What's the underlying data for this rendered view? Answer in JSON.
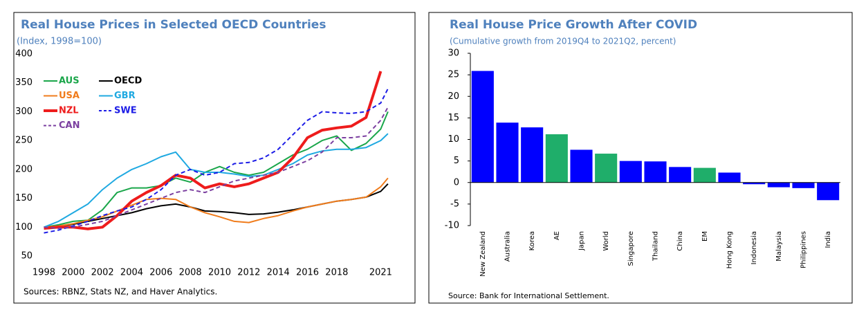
{
  "chart_data": [
    {
      "type": "line",
      "title": "Real House Prices in Selected OECD Countries",
      "subtitle": "(Index, 1998=100)",
      "source": "Sources: RBNZ, Stats NZ, and Haver Analytics.",
      "x": [
        1998,
        1999,
        2000,
        2001,
        2002,
        2003,
        2004,
        2005,
        2006,
        2007,
        2008,
        2009,
        2010,
        2011,
        2012,
        2013,
        2014,
        2015,
        2016,
        2017,
        2018,
        2019,
        2020,
        2021,
        2021.5
      ],
      "xlim": [
        1997.6,
        2022.4
      ],
      "xticks": [
        1998,
        2000,
        2002,
        2004,
        2006,
        2008,
        2010,
        2012,
        2014,
        2016,
        2018,
        2021
      ],
      "ylim": [
        50,
        400
      ],
      "yticks": [
        50,
        100,
        150,
        200,
        250,
        300,
        350,
        400
      ],
      "series": [
        {
          "name": "AUS",
          "color": "#1aa64a",
          "width": 2,
          "dash": false,
          "values": [
            100,
            104,
            110,
            112,
            130,
            160,
            168,
            168,
            172,
            185,
            178,
            195,
            205,
            195,
            190,
            195,
            210,
            225,
            235,
            250,
            258,
            233,
            245,
            270,
            300
          ]
        },
        {
          "name": "OECD",
          "color": "#000000",
          "width": 2,
          "dash": false,
          "values": [
            100,
            102,
            105,
            110,
            115,
            120,
            125,
            132,
            137,
            140,
            135,
            128,
            127,
            125,
            122,
            123,
            126,
            130,
            135,
            140,
            145,
            148,
            152,
            162,
            175
          ]
        },
        {
          "name": "USA",
          "color": "#f07c1c",
          "width": 2,
          "dash": false,
          "values": [
            100,
            102,
            106,
            112,
            118,
            128,
            138,
            148,
            150,
            148,
            135,
            125,
            118,
            110,
            108,
            115,
            120,
            128,
            135,
            140,
            145,
            148,
            152,
            170,
            185
          ]
        },
        {
          "name": "GBR",
          "color": "#1fa9e1",
          "width": 2,
          "dash": false,
          "values": [
            100,
            110,
            125,
            140,
            165,
            185,
            200,
            210,
            222,
            230,
            200,
            195,
            195,
            192,
            188,
            190,
            200,
            210,
            225,
            232,
            235,
            235,
            238,
            250,
            262
          ]
        },
        {
          "name": "NZL",
          "color": "#ee1c1c",
          "width": 4,
          "dash": false,
          "values": [
            98,
            100,
            100,
            97,
            100,
            120,
            145,
            160,
            172,
            190,
            185,
            168,
            175,
            170,
            175,
            185,
            195,
            220,
            255,
            268,
            272,
            275,
            290,
            370,
            null
          ]
        },
        {
          "name": "SWE",
          "color": "#1c1ce6",
          "width": 2,
          "dash": true,
          "values": [
            90,
            95,
            102,
            110,
            120,
            128,
            135,
            148,
            165,
            190,
            200,
            190,
            195,
            210,
            212,
            220,
            235,
            260,
            285,
            300,
            298,
            297,
            300,
            315,
            340
          ]
        },
        {
          "name": "CAN",
          "color": "#7b3fa0",
          "width": 2,
          "dash": true,
          "values": [
            100,
            98,
            100,
            105,
            110,
            120,
            130,
            140,
            150,
            160,
            165,
            160,
            170,
            180,
            185,
            190,
            195,
            205,
            215,
            230,
            255,
            255,
            258,
            285,
            308
          ]
        }
      ]
    },
    {
      "type": "bar",
      "title": "Real House Price Growth After COVID",
      "subtitle": "(Cumulative growth from 2019Q4 to 2021Q2, percent)",
      "source": "Source: Bank for International Settlement.",
      "categories": [
        "New Zealand",
        "Australia",
        "Korea",
        "AE",
        "Japan",
        "World",
        "Singapore",
        "Thailand",
        "China",
        "EM",
        "Hong Kong",
        "Indonesia",
        "Malaysia",
        "Philippines",
        "India"
      ],
      "values": [
        25.9,
        13.9,
        12.8,
        11.2,
        7.6,
        6.7,
        5.0,
        4.9,
        3.6,
        3.4,
        2.3,
        -0.4,
        -1.1,
        -1.3,
        -4.1
      ],
      "colors": [
        "#0000ff",
        "#0000ff",
        "#0000ff",
        "#1fae6a",
        "#0000ff",
        "#1fae6a",
        "#0000ff",
        "#0000ff",
        "#0000ff",
        "#1fae6a",
        "#0000ff",
        "#0000ff",
        "#0000ff",
        "#0000ff",
        "#0000ff"
      ],
      "ylim": [
        -10,
        30
      ],
      "yticks": [
        -10,
        -5,
        0,
        5,
        10,
        15,
        20,
        25,
        30
      ]
    }
  ]
}
